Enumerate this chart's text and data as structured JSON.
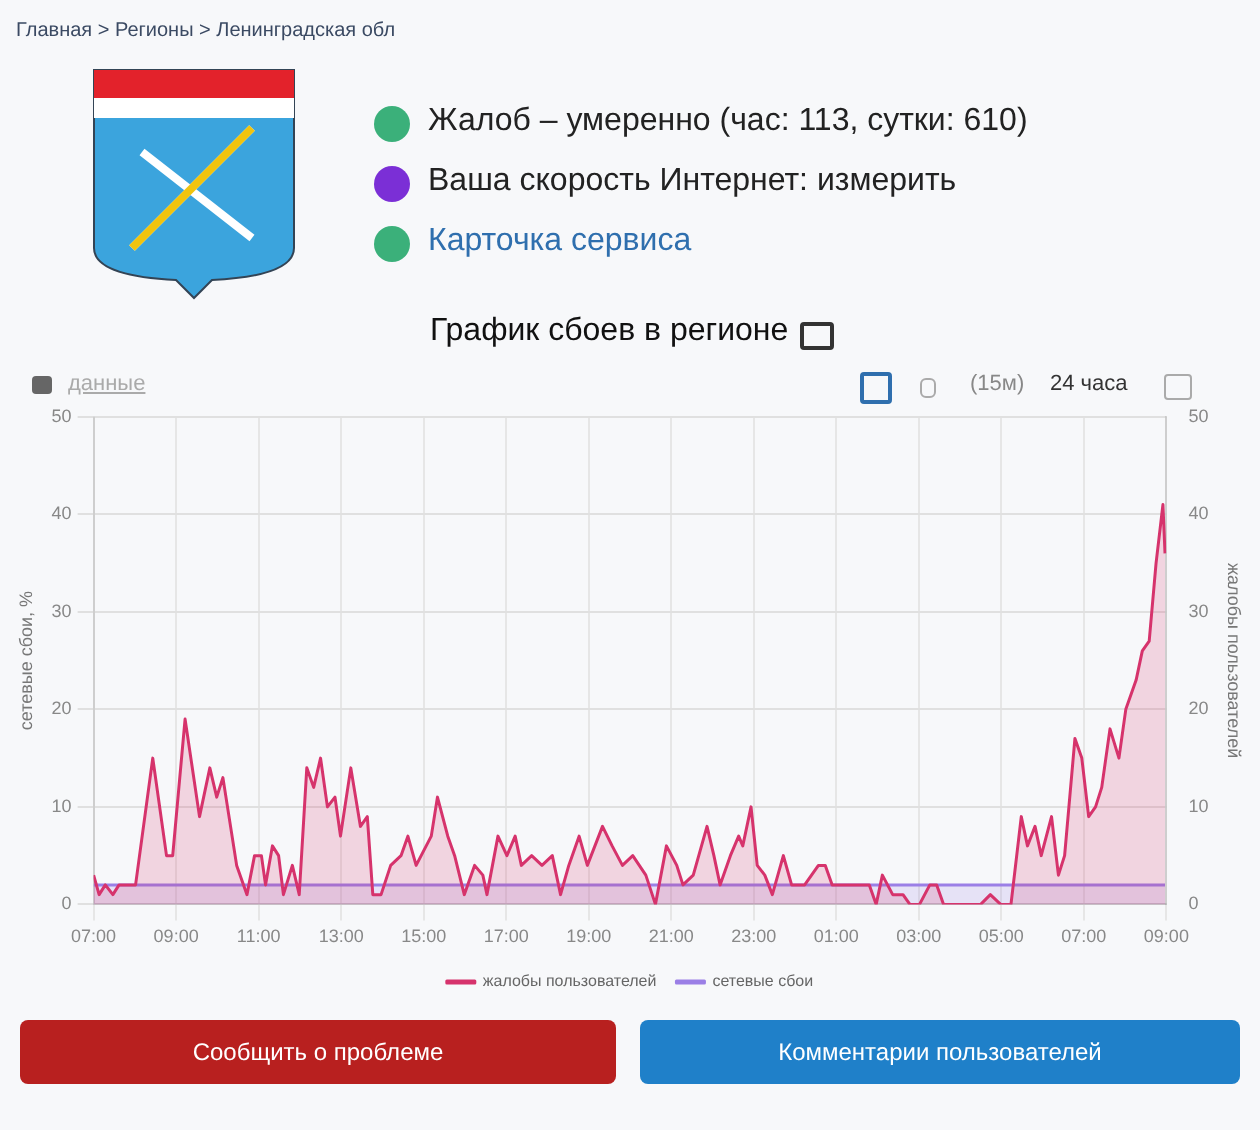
{
  "chart_data": {
    "type": "area",
    "title": "График сбоев в регионе",
    "ylabel": "сетевые сбои, %",
    "y2label": "жалобы пользователей",
    "series": [
      {
        "name": "жалобы пользователей",
        "axis": "y2",
        "color": "#d6336c",
        "x": [
          "--01-01T07:00",
          "--01-01T07:08",
          "--01-01T07:17",
          "--01-01T07:28",
          "--01-01T07:37",
          "--01-01T08:01",
          "--01-01T08:26",
          "--01-01T08:46",
          "--01-01T08:55",
          "--01-01T09:13",
          "--01-01T09:34",
          "--01-01T09:49",
          "--01-01T09:59",
          "--01-01T10:08",
          "--01-01T10:28",
          "--01-01T10:43",
          "--01-01T10:54",
          "--01-01T11:04",
          "--01-01T11:10",
          "--01-01T11:20",
          "--01-01T11:29",
          "--01-01T11:36",
          "--01-01T11:49",
          "--01-01T11:59",
          "--01-01T12:10",
          "--01-01T12:20",
          "--01-01T12:30",
          "--01-01T12:40",
          "--01-01T12:51",
          "--01-01T12:59",
          "--01-01T13:14",
          "--01-01T13:28",
          "--01-01T13:38",
          "--01-01T13:46",
          "--01-01T13:58",
          "--01-01T14:12",
          "--01-01T14:27",
          "--01-01T14:37",
          "--01-01T14:49",
          "--01-01T15:11",
          "--01-01T15:20",
          "--01-01T15:35",
          "--01-01T15:45",
          "--01-01T15:59",
          "--01-01T16:14",
          "--01-01T16:26",
          "--01-01T16:32",
          "--01-01T16:48",
          "--01-01T17:01",
          "--01-01T17:13",
          "--01-01T17:22",
          "--01-01T17:37",
          "--01-01T17:52",
          "--01-01T18:07",
          "--01-01T18:19",
          "--01-01T18:31",
          "--01-01T18:46",
          "--01-01T18:58",
          "--01-01T19:20",
          "--01-01T19:34",
          "--01-01T19:49",
          "--01-01T20:04",
          "--01-01T20:23",
          "--01-01T20:37",
          "--01-01T20:53",
          "--01-01T21:08",
          "--01-01T21:17",
          "--01-01T21:32",
          "--01-01T21:52",
          "--01-01T22:02",
          "--01-01T22:11",
          "--01-01T22:26",
          "--01-01T22:38",
          "--01-01T22:44",
          "--01-01T22:56",
          "--01-01T23:05",
          "--01-01T23:16",
          "--01-01T23:27",
          "--01-01T23:43",
          "--01-01T23:55",
          "--01-02T00:14",
          "--01-02T00:34",
          "--01-02T00:44",
          "--01-02T00:54",
          "--01-02T01:23",
          "--01-02T01:48",
          "--01-02T01:58",
          "--01-02T02:07",
          "--01-02T02:22",
          "--01-02T02:37",
          "--01-02T02:47",
          "--01-02T03:01",
          "--01-02T03:16",
          "--01-02T03:26",
          "--01-02T03:36",
          "--01-02T04:30",
          "--01-02T04:44",
          "--01-02T04:59",
          "--01-02T05:14",
          "--01-02T05:29",
          "--01-02T05:38",
          "--01-02T05:49",
          "--01-02T05:58",
          "--01-02T06:13",
          "--01-02T06:23",
          "--01-02T06:32",
          "--01-02T06:47",
          "--01-02T06:57",
          "--01-02T07:07",
          "--01-02T07:17",
          "--01-02T07:26",
          "--01-02T07:38",
          "--01-02T07:51",
          "--01-02T08:01",
          "--01-02T08:16",
          "--01-02T08:25",
          "--01-02T08:35",
          "--01-02T08:45",
          "--01-02T08:55",
          "--01-02T08:58"
        ],
        "values": [
          3,
          1,
          2,
          1,
          2,
          2,
          15,
          5,
          5,
          19,
          9,
          14,
          11,
          13,
          4,
          1,
          5,
          5,
          2,
          6,
          5,
          1,
          4,
          1,
          14,
          12,
          15,
          10,
          11,
          7,
          14,
          8,
          9,
          1,
          1,
          4,
          5,
          7,
          4,
          7,
          11,
          7,
          5,
          1,
          4,
          3,
          1,
          7,
          5,
          7,
          4,
          5,
          4,
          5,
          1,
          4,
          7,
          4,
          8,
          6,
          4,
          5,
          3,
          0,
          6,
          4,
          2,
          3,
          8,
          5,
          2,
          5,
          7,
          6,
          10,
          4,
          3,
          1,
          5,
          2,
          2,
          4,
          4,
          2,
          2,
          2,
          0,
          3,
          1,
          1,
          0,
          0,
          2,
          2,
          0,
          0,
          1,
          0,
          0,
          9,
          6,
          8,
          5,
          9,
          3,
          5,
          17,
          15,
          9,
          10,
          12,
          18,
          15,
          20,
          23,
          26,
          27,
          35,
          41,
          36
        ]
      },
      {
        "name": "сетевые сбои",
        "axis": "y",
        "color": "#9b7fe6",
        "x": [
          "--01-01T07:00",
          "--01-01T09:00",
          "--01-01T12:00",
          "--01-01T16:00",
          "--01-01T20:00",
          "--01-02T00:00",
          "--01-02T04:00",
          "--01-02T08:58"
        ],
        "values": [
          2,
          2,
          2,
          2,
          2,
          2,
          2,
          2
        ]
      }
    ],
    "xlim": [
      "--01-01T07:00",
      "--01-02T09:00"
    ],
    "xticks": [
      {
        "value": "--01-01T07:00",
        "label": "07:00"
      },
      {
        "value": "--01-01T09:00",
        "label": "09:00"
      },
      {
        "value": "--01-01T11:00",
        "label": "11:00"
      },
      {
        "value": "--01-01T13:00",
        "label": "13:00"
      },
      {
        "value": "--01-01T15:00",
        "label": "15:00"
      },
      {
        "value": "--01-01T17:00",
        "label": "17:00"
      },
      {
        "value": "--01-01T19:00",
        "label": "19:00"
      },
      {
        "value": "--01-01T21:00",
        "label": "21:00"
      },
      {
        "value": "--01-01T23:00",
        "label": "23:00"
      },
      {
        "value": "--01-02T01:00",
        "label": "01:00"
      },
      {
        "value": "--01-02T03:00",
        "label": "03:00"
      },
      {
        "value": "--01-02T05:00",
        "label": "05:00"
      },
      {
        "value": "--01-02T07:00",
        "label": "07:00"
      },
      {
        "value": "--01-02T09:00",
        "label": "09:00"
      }
    ],
    "ylim": [
      0,
      50
    ],
    "yticks": [
      0,
      10,
      20,
      30,
      40,
      50
    ],
    "y2lim": [
      0,
      50
    ],
    "y2ticks": [
      0,
      10,
      20,
      30,
      40,
      50
    ],
    "grid": true,
    "legend": "bottom",
    "marker": "none",
    "annotations": [
      "Главная > Регионы > Ленинградская обл",
      "Жалоб – умеренно (час: 113, сутки: 610)",
      "Ваша скорость Интернет: измерить",
      "Карточка сервиса",
      "данные",
      "(15м)",
      "24 часа",
      "Сообщить о проблеме",
      "Комментарии пользователей"
    ]
  }
}
